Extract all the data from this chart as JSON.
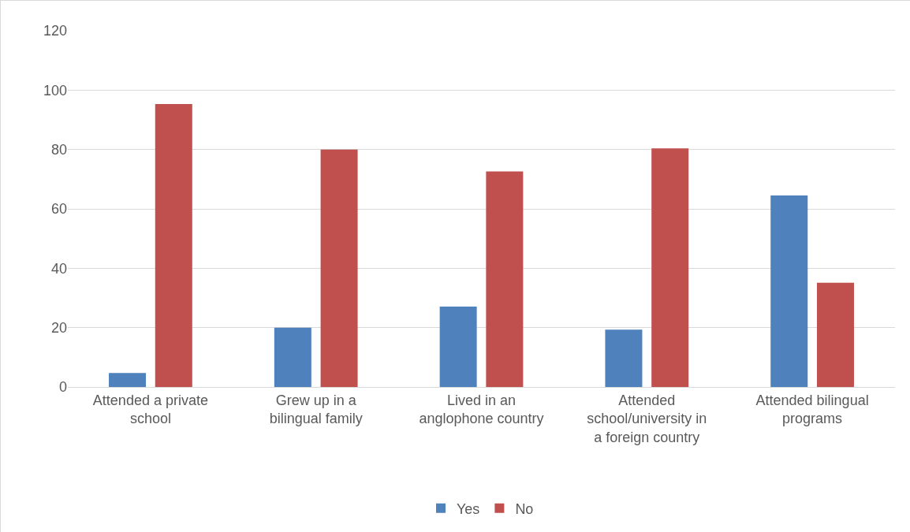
{
  "chart_data": {
    "type": "bar",
    "categories": [
      "Attended a private school",
      "Grew up in a bilingual family",
      "Lived in an anglophone country",
      "Attended school/university in a foreign country",
      "Attended bilingual programs"
    ],
    "series": [
      {
        "name": "Yes",
        "color": "#4f81bd",
        "values": [
          4.7,
          20.0,
          27.1,
          19.3,
          64.5
        ]
      },
      {
        "name": "No",
        "color": "#c0504d",
        "values": [
          95.3,
          80.0,
          72.6,
          80.4,
          35.1
        ]
      }
    ],
    "ylim": [
      0,
      120
    ],
    "yticks": [
      0,
      20,
      40,
      60,
      80,
      100,
      120
    ],
    "grid": "y",
    "legend": "bottom"
  }
}
